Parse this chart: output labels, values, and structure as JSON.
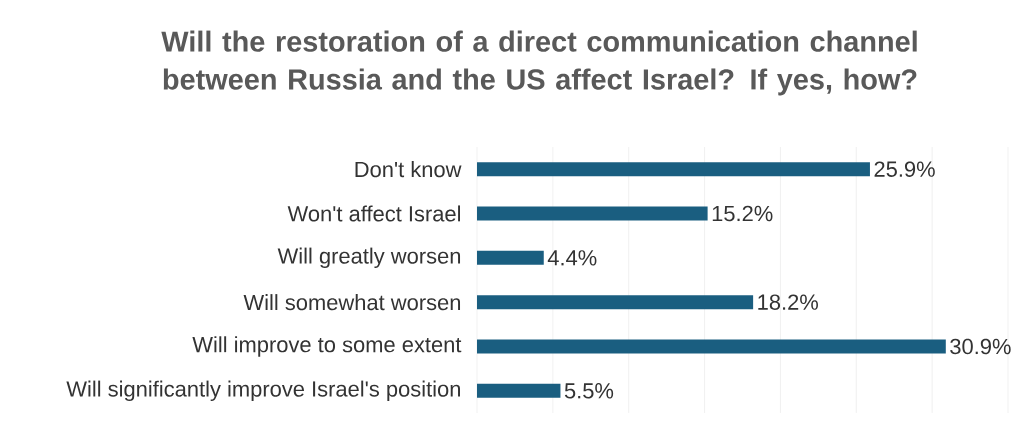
{
  "chart_data": {
    "type": "bar",
    "orientation": "horizontal",
    "title": "Will the restoration of a direct communication channel between Russia and the US affect Israel? If yes, how?",
    "categories": [
      "Don't know",
      "Won't affect Israel",
      "Will greatly worsen",
      "Will somewhat worsen",
      "Will improve to some extent",
      "Will significantly improve Israel's position"
    ],
    "values": [
      25.9,
      15.2,
      4.4,
      18.2,
      30.9,
      5.5
    ],
    "value_labels": [
      "25.9%",
      "15.2%",
      "4.4%",
      "18.2%",
      "30.9%",
      "5.5%"
    ],
    "color": "#1a5e80",
    "xlim": [
      0,
      35
    ],
    "xticks": [
      {
        "value": 0,
        "label": null
      },
      {
        "value": 5,
        "label": null
      },
      {
        "value": 10,
        "label": null
      },
      {
        "value": 15,
        "label": null
      },
      {
        "value": 20,
        "label": null
      },
      {
        "value": 25,
        "label": null
      },
      {
        "value": 30,
        "label": null
      },
      {
        "value": 35,
        "label": null
      }
    ],
    "grid": "x",
    "tick_labels": "y"
  }
}
